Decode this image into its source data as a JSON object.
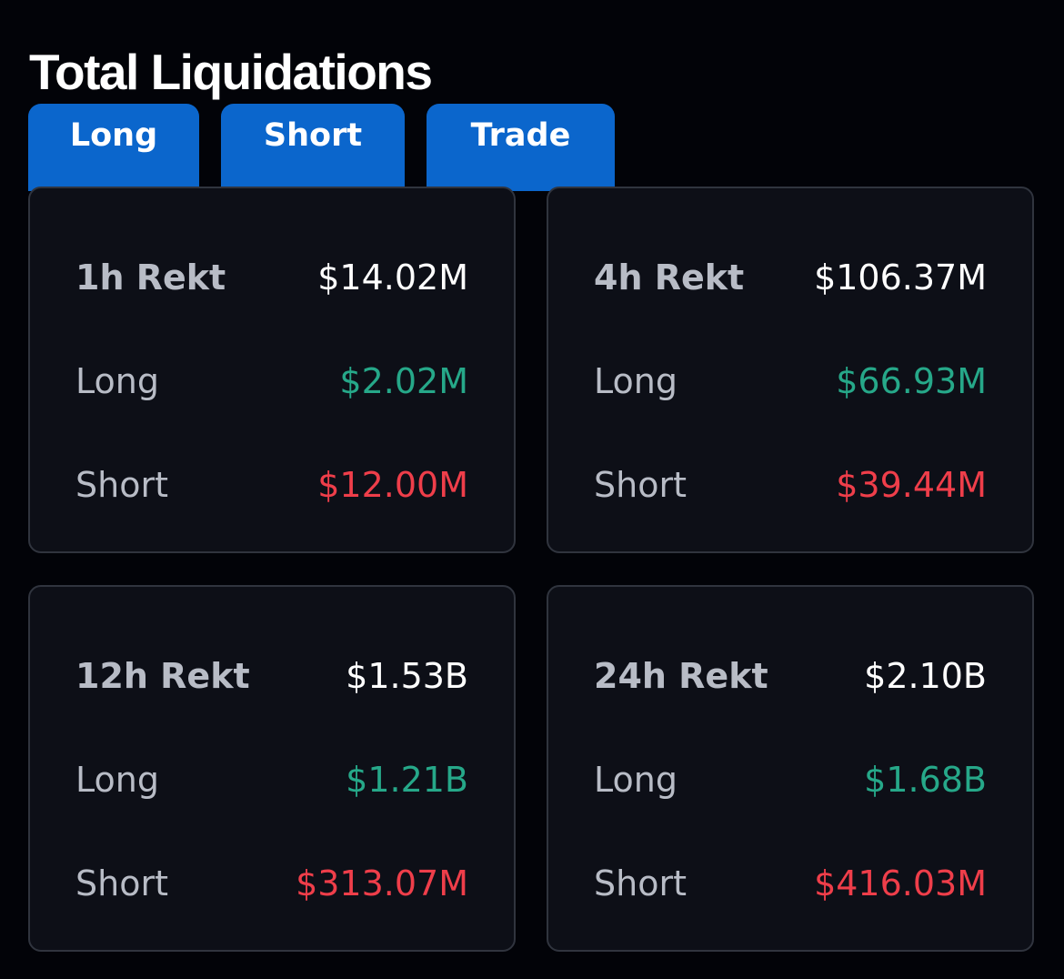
{
  "title": "Total Liquidations",
  "tabs": [
    {
      "label": "Long"
    },
    {
      "label": "Short"
    },
    {
      "label": "Trade"
    }
  ],
  "cards": [
    {
      "period_label": "1h Rekt",
      "total": "$14.02M",
      "long_label": "Long",
      "long_value": "$2.02M",
      "short_label": "Short",
      "short_value": "$12.00M"
    },
    {
      "period_label": "4h Rekt",
      "total": "$106.37M",
      "long_label": "Long",
      "long_value": "$66.93M",
      "short_label": "Short",
      "short_value": "$39.44M"
    },
    {
      "period_label": "12h Rekt",
      "total": "$1.53B",
      "long_label": "Long",
      "long_value": "$1.21B",
      "short_label": "Short",
      "short_value": "$313.07M"
    },
    {
      "period_label": "24h Rekt",
      "total": "$2.10B",
      "long_label": "Long",
      "long_value": "$1.68B",
      "short_label": "Short",
      "short_value": "$416.03M"
    }
  ],
  "colors": {
    "background": "#020308",
    "tab": "#0b66cc",
    "card": "#0d0f17",
    "long": "#26a889",
    "short": "#ef3e4a"
  }
}
